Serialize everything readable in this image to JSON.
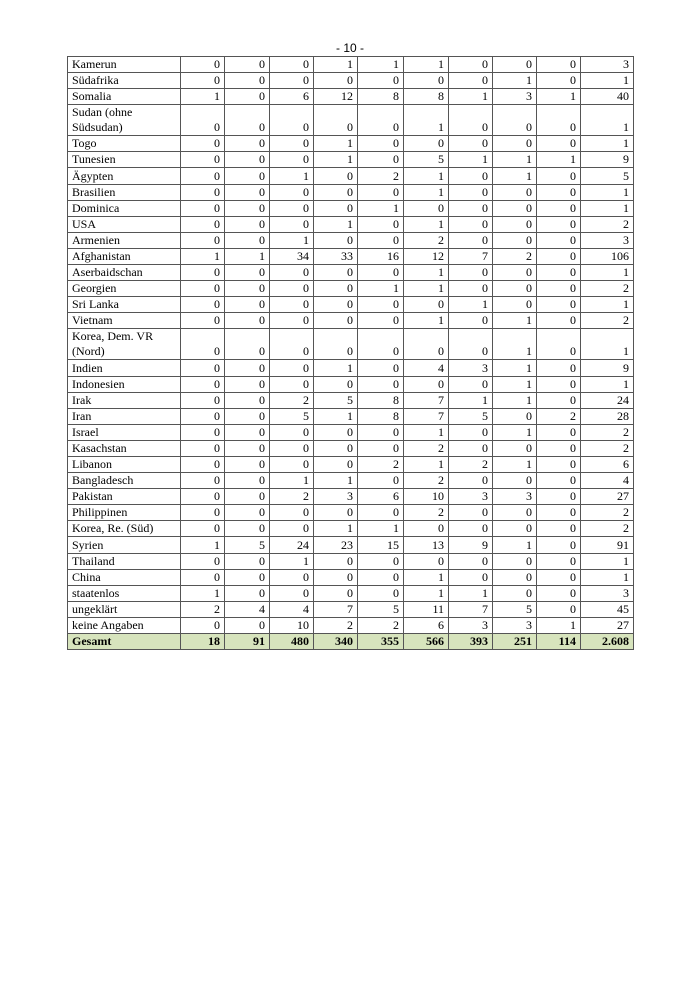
{
  "page_number": "- 10 -",
  "rows": [
    {
      "name": "Kamerun",
      "values": [
        "0",
        "0",
        "0",
        "1",
        "1",
        "1",
        "0",
        "0",
        "0",
        "3"
      ]
    },
    {
      "name": "Südafrika",
      "values": [
        "0",
        "0",
        "0",
        "0",
        "0",
        "0",
        "0",
        "1",
        "0",
        "1"
      ]
    },
    {
      "name": "Somalia",
      "values": [
        "1",
        "0",
        "6",
        "12",
        "8",
        "8",
        "1",
        "3",
        "1",
        "40"
      ]
    },
    {
      "name": "Sudan (ohne Südsudan)",
      "values": [
        "0",
        "0",
        "0",
        "0",
        "0",
        "1",
        "0",
        "0",
        "0",
        "1"
      ]
    },
    {
      "name": "Togo",
      "values": [
        "0",
        "0",
        "0",
        "1",
        "0",
        "0",
        "0",
        "0",
        "0",
        "1"
      ]
    },
    {
      "name": "Tunesien",
      "values": [
        "0",
        "0",
        "0",
        "1",
        "0",
        "5",
        "1",
        "1",
        "1",
        "9"
      ]
    },
    {
      "name": "Ägypten",
      "values": [
        "0",
        "0",
        "1",
        "0",
        "2",
        "1",
        "0",
        "1",
        "0",
        "5"
      ]
    },
    {
      "name": "Brasilien",
      "values": [
        "0",
        "0",
        "0",
        "0",
        "0",
        "1",
        "0",
        "0",
        "0",
        "1"
      ]
    },
    {
      "name": "Dominica",
      "values": [
        "0",
        "0",
        "0",
        "0",
        "1",
        "0",
        "0",
        "0",
        "0",
        "1"
      ]
    },
    {
      "name": "USA",
      "values": [
        "0",
        "0",
        "0",
        "1",
        "0",
        "1",
        "0",
        "0",
        "0",
        "2"
      ]
    },
    {
      "name": "Armenien",
      "values": [
        "0",
        "0",
        "1",
        "0",
        "0",
        "2",
        "0",
        "0",
        "0",
        "3"
      ]
    },
    {
      "name": "Afghanistan",
      "values": [
        "1",
        "1",
        "34",
        "33",
        "16",
        "12",
        "7",
        "2",
        "0",
        "106"
      ]
    },
    {
      "name": "Aserbaidschan",
      "values": [
        "0",
        "0",
        "0",
        "0",
        "0",
        "1",
        "0",
        "0",
        "0",
        "1"
      ]
    },
    {
      "name": "Georgien",
      "values": [
        "0",
        "0",
        "0",
        "0",
        "1",
        "1",
        "0",
        "0",
        "0",
        "2"
      ]
    },
    {
      "name": "Sri Lanka",
      "values": [
        "0",
        "0",
        "0",
        "0",
        "0",
        "0",
        "1",
        "0",
        "0",
        "1"
      ]
    },
    {
      "name": "Vietnam",
      "values": [
        "0",
        "0",
        "0",
        "0",
        "0",
        "1",
        "0",
        "1",
        "0",
        "2"
      ]
    },
    {
      "name": "Korea, Dem. VR (Nord)",
      "values": [
        "0",
        "0",
        "0",
        "0",
        "0",
        "0",
        "0",
        "1",
        "0",
        "1"
      ]
    },
    {
      "name": "Indien",
      "values": [
        "0",
        "0",
        "0",
        "1",
        "0",
        "4",
        "3",
        "1",
        "0",
        "9"
      ]
    },
    {
      "name": "Indonesien",
      "values": [
        "0",
        "0",
        "0",
        "0",
        "0",
        "0",
        "0",
        "1",
        "0",
        "1"
      ]
    },
    {
      "name": "Irak",
      "values": [
        "0",
        "0",
        "2",
        "5",
        "8",
        "7",
        "1",
        "1",
        "0",
        "24"
      ]
    },
    {
      "name": "Iran",
      "values": [
        "0",
        "0",
        "5",
        "1",
        "8",
        "7",
        "5",
        "0",
        "2",
        "28"
      ]
    },
    {
      "name": "Israel",
      "values": [
        "0",
        "0",
        "0",
        "0",
        "0",
        "1",
        "0",
        "1",
        "0",
        "2"
      ]
    },
    {
      "name": "Kasachstan",
      "values": [
        "0",
        "0",
        "0",
        "0",
        "0",
        "2",
        "0",
        "0",
        "0",
        "2"
      ]
    },
    {
      "name": "Libanon",
      "values": [
        "0",
        "0",
        "0",
        "0",
        "2",
        "1",
        "2",
        "1",
        "0",
        "6"
      ]
    },
    {
      "name": "Bangladesch",
      "values": [
        "0",
        "0",
        "1",
        "1",
        "0",
        "2",
        "0",
        "0",
        "0",
        "4"
      ]
    },
    {
      "name": "Pakistan",
      "values": [
        "0",
        "0",
        "2",
        "3",
        "6",
        "10",
        "3",
        "3",
        "0",
        "27"
      ]
    },
    {
      "name": "Philippinen",
      "values": [
        "0",
        "0",
        "0",
        "0",
        "0",
        "2",
        "0",
        "0",
        "0",
        "2"
      ]
    },
    {
      "name": "Korea, Re. (Süd)",
      "values": [
        "0",
        "0",
        "0",
        "1",
        "1",
        "0",
        "0",
        "0",
        "0",
        "2"
      ]
    },
    {
      "name": "Syrien",
      "values": [
        "1",
        "5",
        "24",
        "23",
        "15",
        "13",
        "9",
        "1",
        "0",
        "91"
      ]
    },
    {
      "name": "Thailand",
      "values": [
        "0",
        "0",
        "1",
        "0",
        "0",
        "0",
        "0",
        "0",
        "0",
        "1"
      ]
    },
    {
      "name": "China",
      "values": [
        "0",
        "0",
        "0",
        "0",
        "0",
        "1",
        "0",
        "0",
        "0",
        "1"
      ]
    },
    {
      "name": "staatenlos",
      "values": [
        "1",
        "0",
        "0",
        "0",
        "0",
        "1",
        "1",
        "0",
        "0",
        "3"
      ]
    },
    {
      "name": "ungeklärt",
      "values": [
        "2",
        "4",
        "4",
        "7",
        "5",
        "11",
        "7",
        "5",
        "0",
        "45"
      ]
    },
    {
      "name": "keine Angaben",
      "values": [
        "0",
        "0",
        "10",
        "2",
        "2",
        "6",
        "3",
        "3",
        "1",
        "27"
      ]
    }
  ],
  "total": {
    "name": "Gesamt",
    "values": [
      "18",
      "91",
      "480",
      "340",
      "355",
      "566",
      "393",
      "251",
      "114",
      "2.608"
    ]
  },
  "colors": {
    "total_row_bg": "#d7e4bd",
    "border": "#555555"
  }
}
